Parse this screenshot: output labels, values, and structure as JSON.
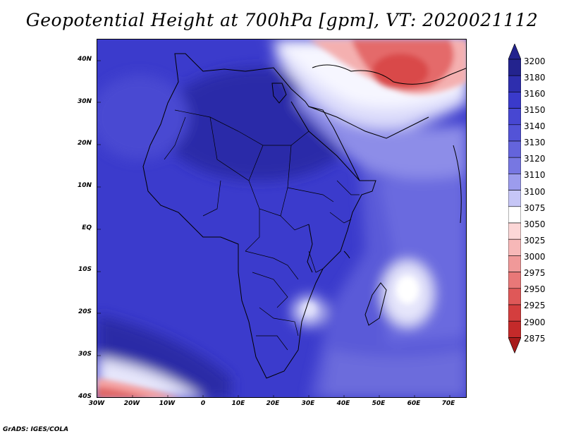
{
  "title": "Geopotential Height at 700hPa [gpm], VT: 2020021112",
  "y_labels": [
    "40N",
    "30N",
    "20N",
    "10N",
    "EQ",
    "10S",
    "20S",
    "30S",
    "40S"
  ],
  "x_labels": [
    "30W",
    "20W",
    "10W",
    "0",
    "10E",
    "20E",
    "30E",
    "40E",
    "50E",
    "60E",
    "70E"
  ],
  "colorbar": {
    "labels": [
      "3200",
      "3180",
      "3160",
      "3150",
      "3140",
      "3130",
      "3120",
      "3110",
      "3100",
      "3075",
      "3050",
      "3025",
      "3000",
      "2975",
      "2950",
      "2925",
      "2900",
      "2875"
    ],
    "colors": [
      "#23238e",
      "#2e2eae",
      "#3a3acb",
      "#4747d2",
      "#5353d7",
      "#6464dc",
      "#7777e2",
      "#9c9ced",
      "#c6c6f6",
      "#ffffff",
      "#fcd7d7",
      "#f7b8b8",
      "#f09999",
      "#e87878",
      "#df5858",
      "#d43e3e",
      "#c42a2a",
      "#a81c1c"
    ],
    "top_color": "#23238e",
    "bottom_color": "#a81c1c"
  },
  "footer": "GrADS: IGES/COLA"
}
